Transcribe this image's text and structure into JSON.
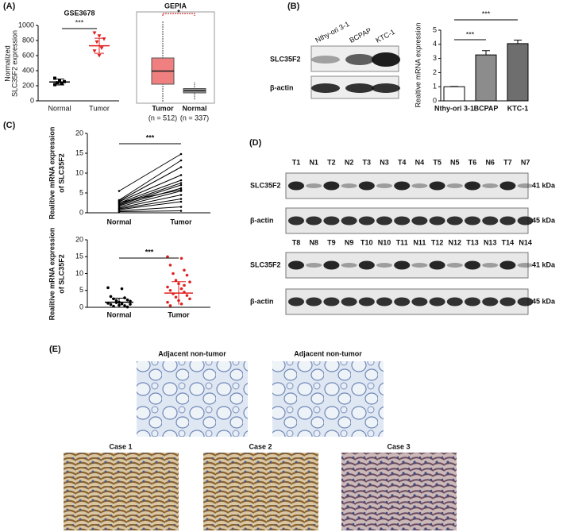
{
  "panels": {
    "A": {
      "label": "(A)",
      "left": {
        "title": "GSE3678",
        "ylabel": [
          "Normalized",
          "SLC35F2 expression"
        ],
        "categories": [
          "Normal",
          "Tumor"
        ],
        "ylim": [
          0,
          1000
        ],
        "yticks": [
          0,
          200,
          400,
          600,
          800,
          1000
        ],
        "significance": "***",
        "values": [
          [
            300,
            270,
            255,
            240,
            230,
            215,
            260
          ],
          [
            900,
            860,
            820,
            780,
            700,
            660,
            600
          ]
        ],
        "means": [
          250,
          730
        ],
        "errors": [
          40,
          100
        ],
        "colors": [
          "#000000",
          "#e02020"
        ]
      },
      "right": {
        "title": "GEPIA",
        "categories": [
          "Tumor",
          "Normal"
        ],
        "counts": [
          "(n = 512)",
          "(n = 337)"
        ],
        "significance": "*",
        "ylim": [
          0,
          40
        ],
        "boxes": [
          [
            0,
            8,
            14,
            20,
            37
          ],
          [
            1,
            4,
            5,
            6,
            9
          ]
        ],
        "colors": [
          "#f08080",
          "#9a9a9a"
        ]
      }
    },
    "B": {
      "label": "(B)",
      "lanes": [
        "Nthy-ori 3-1",
        "BCPAP",
        "KTC-1"
      ],
      "rows": [
        "SLC35F2",
        "β-actin"
      ],
      "ylabel": "Realtive mRNA expression",
      "ylim": [
        0,
        5
      ],
      "yticks": [
        0,
        1,
        2,
        3,
        4,
        5
      ],
      "values": [
        1,
        3.25,
        4.05
      ],
      "errors": [
        0.02,
        0.3,
        0.25
      ],
      "colors": [
        "#ffffff",
        "#8c8c8c",
        "#6e6e6e"
      ],
      "significance": [
        "***",
        "***"
      ]
    },
    "C": {
      "label": "(C)",
      "top": {
        "ylabel": [
          "Realitive mRNA expression",
          "of SLC35F2"
        ],
        "categories": [
          "Normal",
          "Tumor"
        ],
        "ylim": [
          0,
          20
        ],
        "yticks": [
          0,
          5,
          10,
          15,
          20
        ],
        "significance": "***",
        "normal": [
          5.5,
          3.2,
          3.0,
          2.8,
          2.5,
          2.2,
          2.0,
          1.8,
          1.5,
          1.2,
          1.0,
          0.8,
          0.5,
          0.3,
          2.6
        ],
        "tumor": [
          14.8,
          13.2,
          11.5,
          9.5,
          8.2,
          7.5,
          7.0,
          6.2,
          5.5,
          4.5,
          3.5,
          2.8,
          1.5,
          0.5,
          5.8
        ]
      },
      "bottom": {
        "ylabel": [
          "Realitive mRNA expression",
          "of SLC35F2"
        ],
        "categories": [
          "Normal",
          "Tumor"
        ],
        "ylim": [
          0,
          20
        ],
        "yticks": [
          0,
          5,
          10,
          15,
          20
        ],
        "significance": "***",
        "values": [
          [
            5.8,
            5.5,
            3.2,
            2.8,
            2.5,
            2.2,
            2.0,
            1.8,
            1.5,
            1.2,
            1.0,
            0.8,
            0.5,
            0.3,
            0.1,
            1.4,
            0.9,
            0.6
          ],
          [
            15,
            14.5,
            12.5,
            11,
            10,
            9.5,
            8,
            7.5,
            7,
            6,
            5.5,
            5,
            4.5,
            4,
            3.5,
            3,
            2.5,
            2,
            1.5,
            1,
            0.5,
            6.5
          ]
        ],
        "means": [
          1.5,
          4.2
        ],
        "errors": [
          1.2,
          3.4
        ],
        "colors": [
          "#000000",
          "#e02020"
        ]
      }
    },
    "D": {
      "label": "(D)",
      "rows": [
        "SLC35F2",
        "β-actin"
      ],
      "kda": [
        "41 kDa",
        "45 kDa"
      ],
      "sets": [
        {
          "lanes": [
            "T1",
            "N1",
            "T2",
            "N2",
            "T3",
            "N3",
            "T4",
            "N4",
            "T5",
            "N5",
            "T6",
            "N6",
            "T7",
            "N7"
          ]
        },
        {
          "lanes": [
            "T8",
            "N8",
            "T9",
            "N9",
            "T10",
            "N10",
            "T11",
            "N11",
            "T12",
            "N12",
            "T13",
            "N13",
            "T14",
            "N14"
          ]
        }
      ]
    },
    "E": {
      "label": "(E)",
      "adjacent": [
        "Adjacent non-tumor",
        "Adjacent non-tumor"
      ],
      "cases": [
        "Case 1",
        "Case 2",
        "Case 3"
      ]
    }
  }
}
